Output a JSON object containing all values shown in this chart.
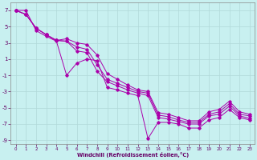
{
  "xlabel": "Windchill (Refroidissement éolien,°C)",
  "background_color": "#c8f0f0",
  "grid_color": "#b0d8d8",
  "line_color": "#aa00aa",
  "xlim": [
    -0.5,
    23.5
  ],
  "ylim": [
    -9.5,
    8.0
  ],
  "yticks": [
    -9,
    -7,
    -5,
    -3,
    -1,
    1,
    3,
    5,
    7
  ],
  "xticks": [
    0,
    1,
    2,
    3,
    4,
    5,
    6,
    7,
    8,
    9,
    10,
    11,
    12,
    13,
    14,
    15,
    16,
    17,
    18,
    19,
    20,
    21,
    22,
    23
  ],
  "lines": [
    {
      "x": [
        0,
        1,
        2,
        3,
        4,
        5,
        6,
        7,
        8,
        9,
        10,
        11,
        12,
        13,
        14,
        15,
        16,
        17,
        18,
        19,
        20,
        21,
        22,
        23
      ],
      "y": [
        7,
        7,
        4.5,
        3.8,
        3.2,
        -1.0,
        0.5,
        1.0,
        0.8,
        -2.5,
        -2.8,
        -3.2,
        -3.5,
        -8.8,
        -6.8,
        -6.8,
        -7.0,
        -7.5,
        -7.5,
        -6.5,
        -6.2,
        -5.2,
        -6.2,
        -6.5
      ]
    },
    {
      "x": [
        0,
        1,
        2,
        3,
        4,
        5,
        6,
        7,
        8,
        9,
        10,
        11,
        12,
        13,
        14,
        15,
        16,
        17,
        18,
        19,
        20,
        21,
        22,
        23
      ],
      "y": [
        7,
        6.5,
        4.8,
        4.0,
        3.3,
        3.2,
        2.0,
        1.8,
        -0.5,
        -1.8,
        -2.3,
        -2.8,
        -3.2,
        -3.5,
        -6.2,
        -6.4,
        -6.7,
        -7.0,
        -7.0,
        -6.0,
        -5.8,
        -4.8,
        -6.0,
        -6.3
      ]
    },
    {
      "x": [
        0,
        1,
        2,
        3,
        4,
        5,
        6,
        7,
        8,
        9,
        10,
        11,
        12,
        13,
        14,
        15,
        16,
        17,
        18,
        19,
        20,
        21,
        22,
        23
      ],
      "y": [
        7,
        6.5,
        4.8,
        4.0,
        3.3,
        3.2,
        2.5,
        2.2,
        0.3,
        -1.5,
        -2.0,
        -2.5,
        -3.0,
        -3.2,
        -5.9,
        -6.1,
        -6.5,
        -6.8,
        -6.8,
        -5.8,
        -5.5,
        -4.5,
        -5.8,
        -6.0
      ]
    },
    {
      "x": [
        0,
        1,
        2,
        3,
        4,
        5,
        6,
        7,
        8,
        9,
        10,
        11,
        12,
        13,
        14,
        15,
        16,
        17,
        18,
        19,
        20,
        21,
        22,
        23
      ],
      "y": [
        7,
        6.5,
        4.8,
        4.0,
        3.3,
        3.5,
        3.0,
        2.8,
        1.5,
        -0.8,
        -1.5,
        -2.2,
        -2.8,
        -3.0,
        -5.6,
        -5.8,
        -6.2,
        -6.6,
        -6.6,
        -5.5,
        -5.2,
        -4.2,
        -5.5,
        -5.8
      ]
    }
  ]
}
